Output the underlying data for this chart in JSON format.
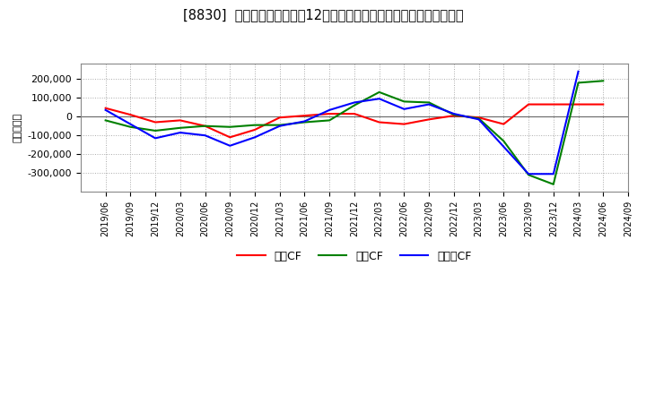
{
  "title": "[8830]  キャッシュフローの12か月移動合計の対前年同期増減額の推移",
  "ylabel": "（百万円）",
  "background_color": "#ffffff",
  "plot_bg_color": "#ffffff",
  "grid_color": "#aaaaaa",
  "title_fontsize": 10.5,
  "dates": [
    "2019/06",
    "2019/09",
    "2019/12",
    "2020/03",
    "2020/06",
    "2020/09",
    "2020/12",
    "2021/03",
    "2021/06",
    "2021/09",
    "2021/12",
    "2022/03",
    "2022/06",
    "2022/09",
    "2022/12",
    "2023/03",
    "2023/06",
    "2023/09",
    "2023/12",
    "2024/03",
    "2024/06",
    "2024/09"
  ],
  "eigyo_cf": [
    45000,
    10000,
    -30000,
    -20000,
    -50000,
    -110000,
    -70000,
    -5000,
    5000,
    15000,
    15000,
    -30000,
    -40000,
    -15000,
    5000,
    -5000,
    -40000,
    65000,
    65000,
    65000,
    65000,
    null
  ],
  "toshi_cf": [
    -20000,
    -55000,
    -75000,
    -60000,
    -50000,
    -55000,
    -45000,
    -45000,
    -30000,
    -20000,
    60000,
    130000,
    80000,
    75000,
    10000,
    -10000,
    -130000,
    -310000,
    -360000,
    180000,
    190000,
    null
  ],
  "free_cf": [
    35000,
    -40000,
    -115000,
    -85000,
    -100000,
    -155000,
    -110000,
    -50000,
    -25000,
    35000,
    75000,
    95000,
    40000,
    65000,
    15000,
    -15000,
    -160000,
    -305000,
    -305000,
    240000,
    null,
    null
  ],
  "eigyo_color": "#ff0000",
  "toshi_color": "#008000",
  "free_color": "#0000ff",
  "ylim": [
    -400000,
    280000
  ],
  "yticks": [
    -300000,
    -200000,
    -100000,
    0,
    100000,
    200000
  ],
  "line_width": 1.5,
  "legend_labels": [
    "営業CF",
    "投資CF",
    "フリーCF"
  ]
}
